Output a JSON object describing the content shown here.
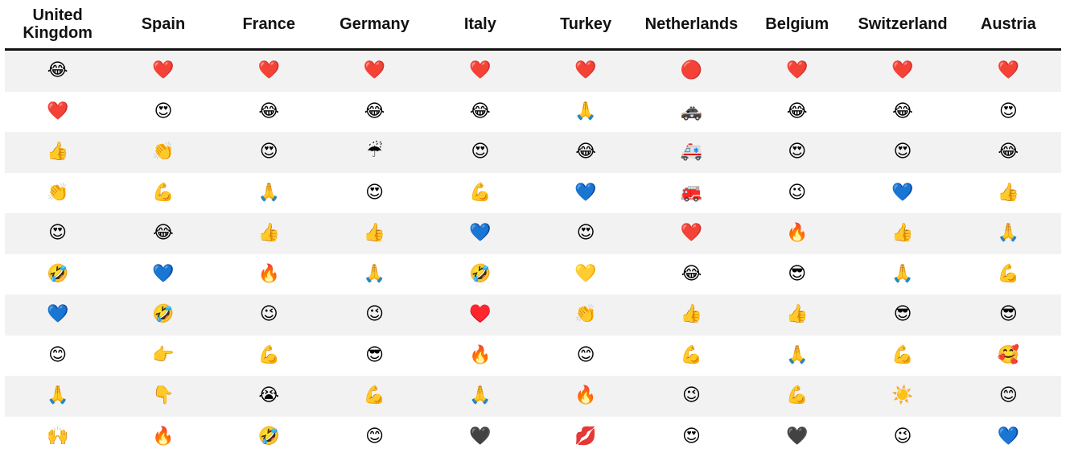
{
  "columns": [
    {
      "label": "United Kingdom",
      "emojis": [
        "😂",
        "❤️",
        "👍",
        "👏",
        "😍",
        "🤣",
        "💙",
        "😊",
        "🙏",
        "🙌"
      ]
    },
    {
      "label": "Spain",
      "emojis": [
        "❤️",
        "😍",
        "👏",
        "💪",
        "😂",
        "💙",
        "🤣",
        "👉",
        "👇",
        "🔥"
      ]
    },
    {
      "label": "France",
      "emojis": [
        "❤️",
        "😂",
        "😍",
        "🙏",
        "👍",
        "🔥",
        "😉",
        "💪",
        "😭",
        "🤣"
      ]
    },
    {
      "label": "Germany",
      "emojis": [
        "❤️",
        "😂",
        "☔",
        "😍",
        "👍",
        "🙏",
        "😉",
        "😎",
        "💪",
        "😊"
      ]
    },
    {
      "label": "Italy",
      "emojis": [
        "❤️",
        "😂",
        "😍",
        "💪",
        "💙",
        "🤣",
        "♥️",
        "🔥",
        "🙏",
        "🖤"
      ]
    },
    {
      "label": "Turkey",
      "emojis": [
        "❤️",
        "🙏",
        "😂",
        "💙",
        "😍",
        "💛",
        "👏",
        "😊",
        "🔥",
        "💋"
      ]
    },
    {
      "label": "Netherlands",
      "emojis": [
        "🔴",
        "🚓",
        "🚑",
        "🚒",
        "❤️",
        "😂",
        "👍",
        "💪",
        "😉",
        "😍"
      ]
    },
    {
      "label": "Belgium",
      "emojis": [
        "❤️",
        "😂",
        "😍",
        "😉",
        "🔥",
        "😎",
        "👍",
        "🙏",
        "💪",
        "🖤"
      ]
    },
    {
      "label": "Switzerland",
      "emojis": [
        "❤️",
        "😂",
        "😍",
        "💙",
        "👍",
        "🙏",
        "😎",
        "💪",
        "☀️",
        "😉"
      ]
    },
    {
      "label": "Austria",
      "emojis": [
        "❤️",
        "😍",
        "😂",
        "👍",
        "🙏",
        "💪",
        "😎",
        "🥰",
        "😊",
        "💙"
      ]
    }
  ],
  "colors": {
    "header_text": "#111111",
    "header_rule": "#111111",
    "row_alt": "#f2f2f2",
    "row_base": "#ffffff"
  }
}
